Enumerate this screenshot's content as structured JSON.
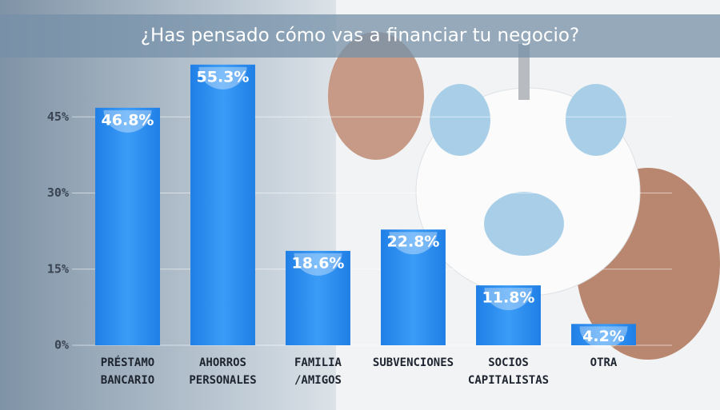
{
  "chart_data": {
    "type": "bar",
    "title": "¿Has pensado cómo vas a financiar tu negocio?",
    "categories": [
      "PRÉSTAMO BANCARIO",
      "AHORROS PERSONALES",
      "FAMILIA /AMIGOS",
      "SUBVENCIONES",
      "SOCIOS CAPITALISTAS",
      "OTRA"
    ],
    "values": [
      46.8,
      55.3,
      18.6,
      22.8,
      11.8,
      4.2
    ],
    "value_labels": [
      "46.8%",
      "55.3%",
      "18.6%",
      "22.8%",
      "11.8%",
      "4.2%"
    ],
    "color": "#2b8ef0",
    "ylim": [
      0,
      60
    ],
    "yticks": [
      {
        "value": 0,
        "label": "0%"
      },
      {
        "value": 15,
        "label": "15%"
      },
      {
        "value": 30,
        "label": "30%"
      },
      {
        "value": 45,
        "label": "45%"
      }
    ],
    "grid": true
  }
}
